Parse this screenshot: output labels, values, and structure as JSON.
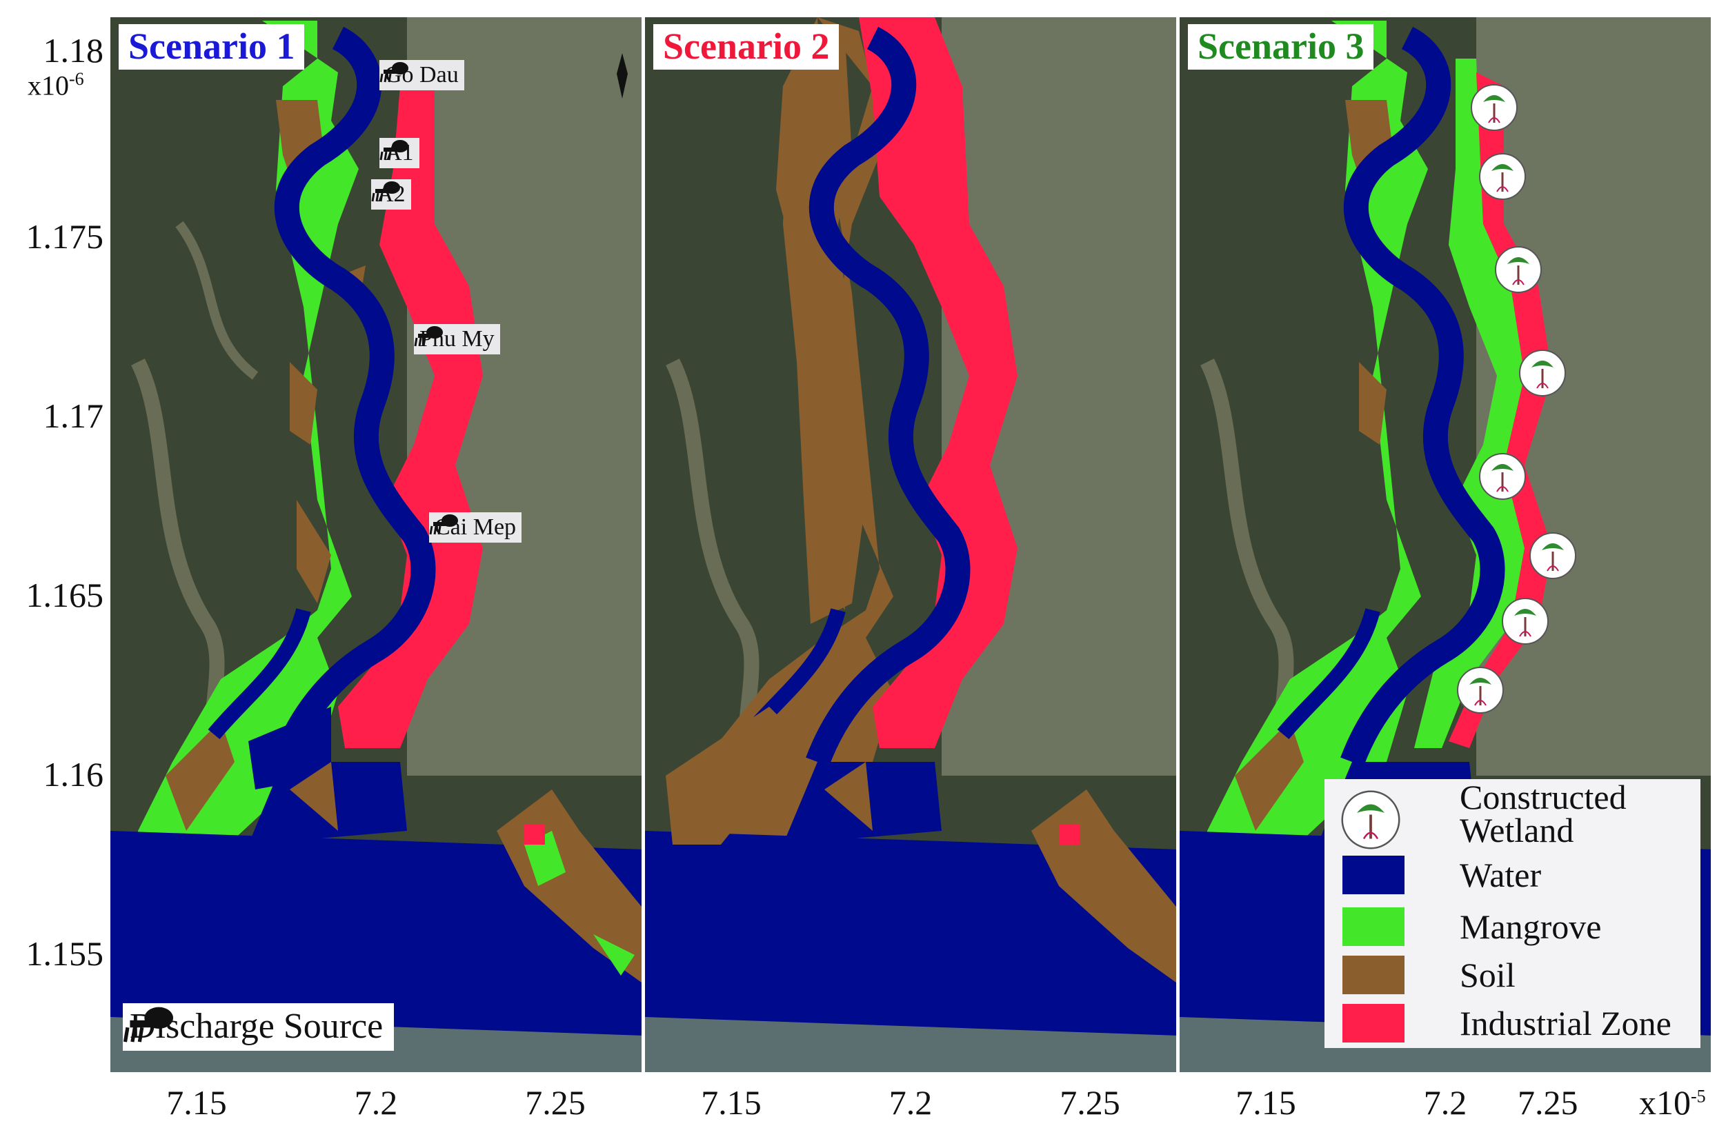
{
  "y_axis": {
    "ticks": [
      "1.18",
      "1.175",
      "1.17",
      "1.165",
      "1.16",
      "1.155"
    ],
    "exponent_base": "x10",
    "exponent_power": "-6"
  },
  "x_axis": {
    "ticks": [
      "7.15",
      "7.2",
      "7.25",
      "7.15",
      "7.2",
      "7.25",
      "7.15",
      "7.2",
      "7.25"
    ],
    "exponent_base": "x10",
    "exponent_power": "-5"
  },
  "panels": [
    {
      "title": "Scenario 1",
      "title_color": "#1a1ad6"
    },
    {
      "title": "Scenario 2",
      "title_color": "#f0183a"
    },
    {
      "title": "Scenario 3",
      "title_color": "#1f8a1f"
    }
  ],
  "discharge_sources": [
    "Go Dau",
    "A1",
    "A2",
    "Phu My",
    "Cai Mep"
  ],
  "discharge_legend_label": "Discharge Source",
  "legend": {
    "constructed_wetland": "Constructed Wetland",
    "items": [
      {
        "label": "Water",
        "color": "#000a8c"
      },
      {
        "label": "Mangrove",
        "color": "#44e629"
      },
      {
        "label": "Soil",
        "color": "#8b5e2e"
      },
      {
        "label": "Industrial Zone",
        "color": "#ff1f4a"
      }
    ]
  },
  "icons": {
    "discharge": "discharge-pipe-icon",
    "wetland": "constructed-wetland-tree-icon",
    "north": "north-arrow-icon"
  }
}
